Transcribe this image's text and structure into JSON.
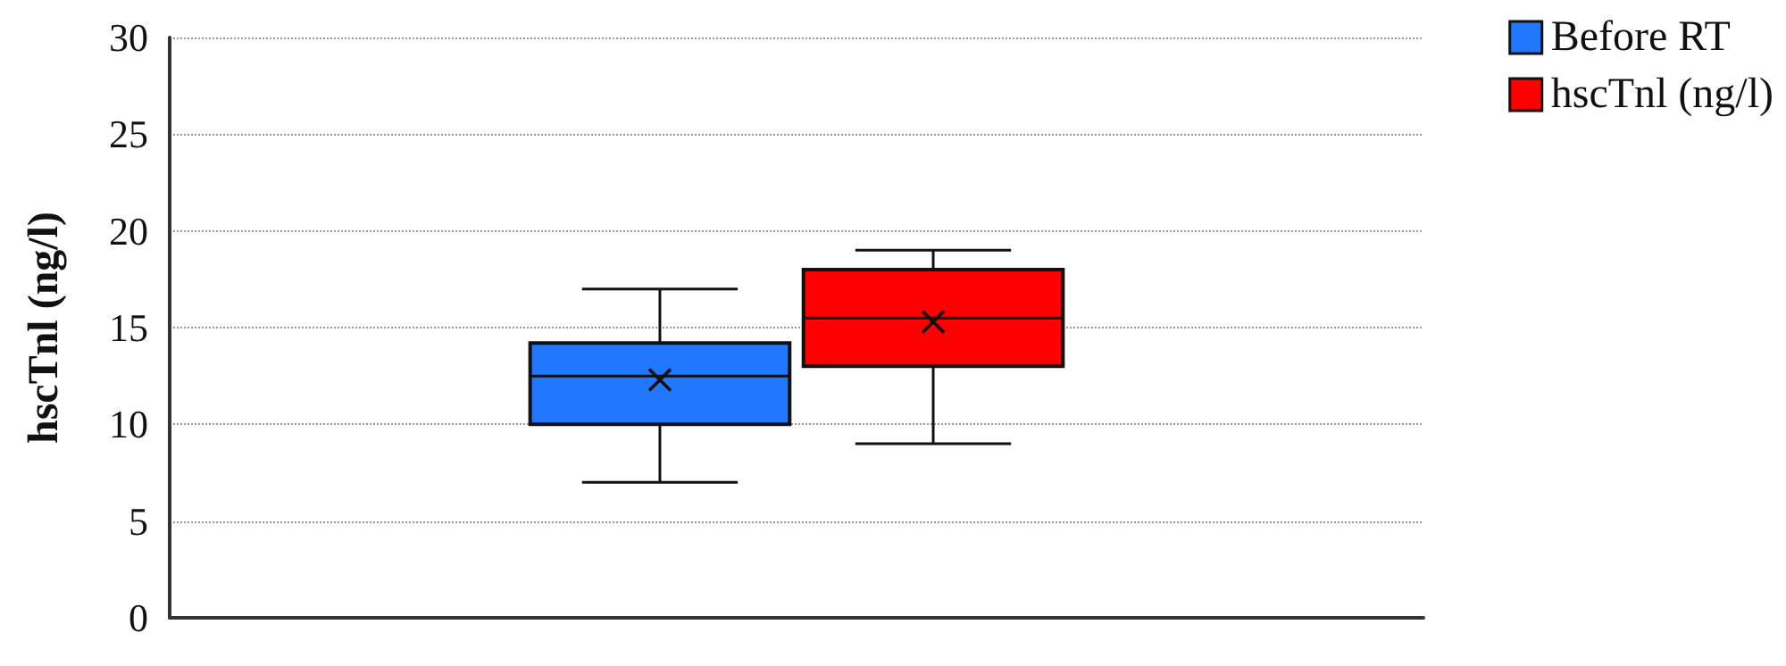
{
  "chart_data": {
    "type": "box",
    "ylabel": "hscTnl (ng/l)",
    "categories": [
      null
    ],
    "series": [
      {
        "name": "Before RT",
        "color": "#2277ff",
        "boxes": [
          {
            "low": 7,
            "q1": 10,
            "median": 12.5,
            "q3": 14.2,
            "high": 17,
            "mean": 12.3
          }
        ]
      },
      {
        "name": "hscTnl (ng/l)",
        "color": "#ff0000",
        "boxes": [
          {
            "low": 9,
            "q1": 13,
            "median": 15.5,
            "q3": 18,
            "high": 19,
            "mean": 15.3
          }
        ]
      }
    ],
    "ylim": [
      0,
      30
    ],
    "yticks": [
      0,
      5,
      10,
      15,
      20,
      25,
      30
    ],
    "grid": "y",
    "legend": "top right"
  }
}
